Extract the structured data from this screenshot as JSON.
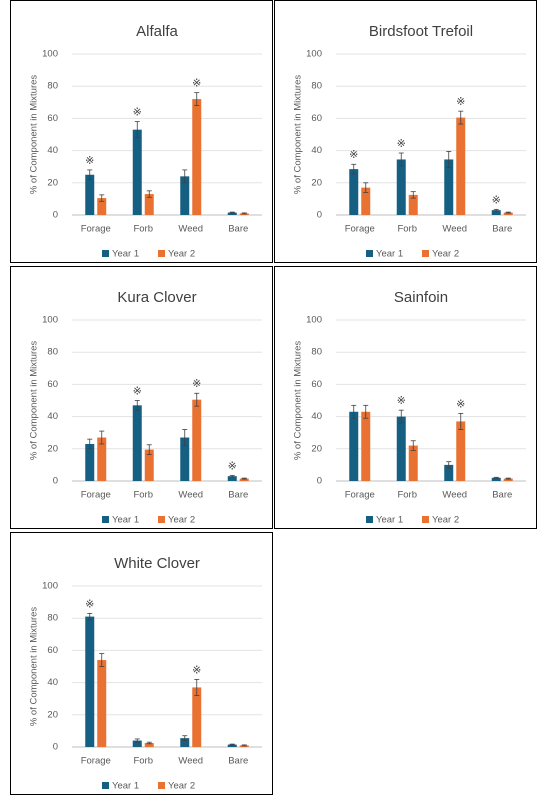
{
  "chart_data": [
    {
      "type": "bar",
      "title": "Alfalfa",
      "y_label": "% of Component in Mixtures",
      "categories": [
        "Forage",
        "Forb",
        "Weed",
        "Bare"
      ],
      "series": [
        {
          "name": "Year 1",
          "color": "#156082",
          "values": [
            25,
            53,
            24,
            1.5
          ],
          "errors": [
            3,
            5,
            4,
            0.3
          ]
        },
        {
          "name": "Year 2",
          "color": "#e97132",
          "values": [
            10.5,
            13,
            72,
            1
          ],
          "errors": [
            2,
            2,
            4,
            0.3
          ]
        }
      ],
      "annotations": [
        {
          "text": "※",
          "series": 0,
          "category": 0
        },
        {
          "text": "※",
          "series": 0,
          "category": 1
        },
        {
          "text": "※",
          "series": 1,
          "category": 2
        }
      ],
      "ylim": [
        0,
        100
      ],
      "yticks": [
        0,
        20,
        40,
        60,
        80,
        100
      ],
      "grid": true
    },
    {
      "type": "bar",
      "title": "Birdsfoot Trefoil",
      "y_label": "% of Component in Mixtures",
      "categories": [
        "Forage",
        "Forb",
        "Weed",
        "Bare"
      ],
      "series": [
        {
          "name": "Year 1",
          "color": "#156082",
          "values": [
            28.5,
            34.5,
            34.5,
            3
          ],
          "errors": [
            3,
            4,
            5,
            0.5
          ]
        },
        {
          "name": "Year 2",
          "color": "#e97132",
          "values": [
            17,
            12.5,
            60.5,
            1.5
          ],
          "errors": [
            3,
            2,
            4,
            0.3
          ]
        }
      ],
      "annotations": [
        {
          "text": "※",
          "series": 0,
          "category": 0
        },
        {
          "text": "※",
          "series": 0,
          "category": 1
        },
        {
          "text": "※",
          "series": 1,
          "category": 2
        },
        {
          "text": "※",
          "series": 0,
          "category": 3
        }
      ],
      "ylim": [
        0,
        100
      ],
      "yticks": [
        0,
        20,
        40,
        60,
        80,
        100
      ],
      "grid": true
    },
    {
      "type": "bar",
      "title": "Kura Clover",
      "y_label": "% of Component in Mixtures",
      "categories": [
        "Forage",
        "Forb",
        "Weed",
        "Bare"
      ],
      "series": [
        {
          "name": "Year 1",
          "color": "#156082",
          "values": [
            23,
            47,
            27,
            3
          ],
          "errors": [
            3,
            3,
            5,
            0.5
          ]
        },
        {
          "name": "Year 2",
          "color": "#e97132",
          "values": [
            27,
            19.5,
            50.5,
            1.5
          ],
          "errors": [
            4,
            3,
            4,
            0.3
          ]
        }
      ],
      "annotations": [
        {
          "text": "※",
          "series": 0,
          "category": 1
        },
        {
          "text": "※",
          "series": 1,
          "category": 2
        },
        {
          "text": "※",
          "series": 0,
          "category": 3
        }
      ],
      "ylim": [
        0,
        100
      ],
      "yticks": [
        0,
        20,
        40,
        60,
        80,
        100
      ],
      "grid": true
    },
    {
      "type": "bar",
      "title": "Sainfoin",
      "y_label": "% of Component in Mixtures",
      "categories": [
        "Forage",
        "Forb",
        "Weed",
        "Bare"
      ],
      "series": [
        {
          "name": "Year 1",
          "color": "#156082",
          "values": [
            43,
            40,
            10,
            2
          ],
          "errors": [
            4,
            4,
            2,
            0.3
          ]
        },
        {
          "name": "Year 2",
          "color": "#e97132",
          "values": [
            43,
            22,
            37,
            1.5
          ],
          "errors": [
            4,
            3,
            5,
            0.3
          ]
        }
      ],
      "annotations": [
        {
          "text": "※",
          "series": 0,
          "category": 1
        },
        {
          "text": "※",
          "series": 1,
          "category": 2
        }
      ],
      "ylim": [
        0,
        100
      ],
      "yticks": [
        0,
        20,
        40,
        60,
        80,
        100
      ],
      "grid": true
    },
    {
      "type": "bar",
      "title": "White Clover",
      "y_label": "% of Component in Mixtures",
      "categories": [
        "Forage",
        "Forb",
        "Weed",
        "Bare"
      ],
      "series": [
        {
          "name": "Year 1",
          "color": "#156082",
          "values": [
            81,
            4,
            5.5,
            1.5
          ],
          "errors": [
            2,
            1,
            1.5,
            0.3
          ]
        },
        {
          "name": "Year 2",
          "color": "#e97132",
          "values": [
            54,
            2.5,
            37,
            1
          ],
          "errors": [
            4,
            0.5,
            5,
            0.3
          ]
        }
      ],
      "annotations": [
        {
          "text": "※",
          "series": 0,
          "category": 0
        },
        {
          "text": "※",
          "series": 1,
          "category": 2
        }
      ],
      "ylim": [
        0,
        100
      ],
      "yticks": [
        0,
        20,
        40,
        60,
        80,
        100
      ],
      "grid": true
    }
  ]
}
